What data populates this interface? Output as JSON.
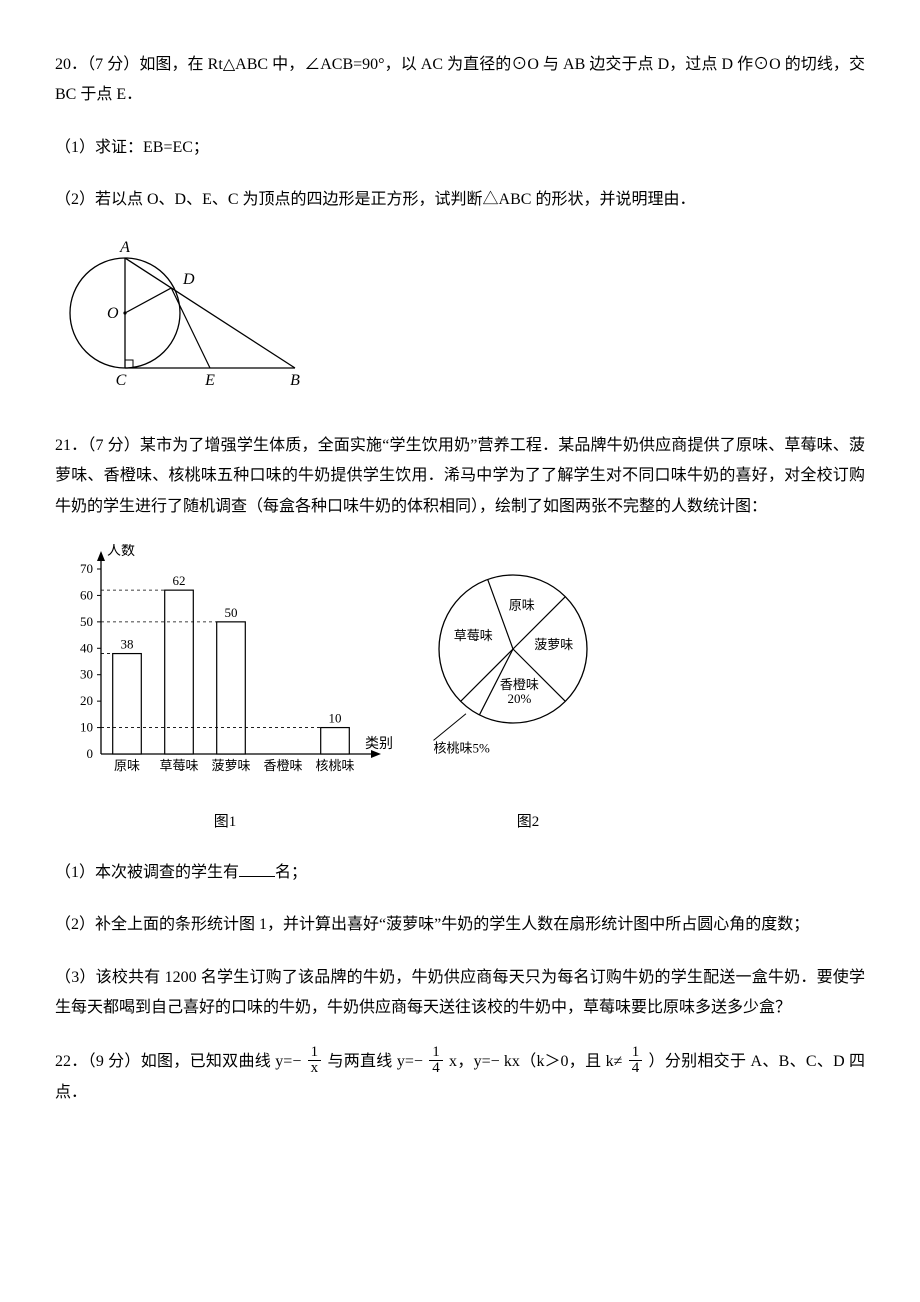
{
  "q20": {
    "num": "20．",
    "points": "（7 分）",
    "stem_a": "如图，在 Rt△ABC 中，∠ACB=90°，以 AC 为直径的⊙O 与 AB 边交于点 D，过点 D 作⊙O 的切线，交 BC 于点 E．",
    "part1": "（1）求证：EB=EC；",
    "part2": "（2）若以点 O、D、E、C 为顶点的四边形是正方形，试判断△ABC 的形状，并说明理由．",
    "labels": {
      "A": "A",
      "D": "D",
      "O": "O",
      "C": "C",
      "E": "E",
      "B": "B"
    }
  },
  "q21": {
    "num": "21．",
    "points": "（7 分）",
    "stem": "某市为了增强学生体质，全面实施“学生饮用奶”营养工程．某品牌牛奶供应商提供了原味、草莓味、菠萝味、香橙味、核桃味五种口味的牛奶提供学生饮用．浠马中学为了了解学生对不同口味牛奶的喜好，对全校订购牛奶的学生进行了随机调查（每盒各种口味牛奶的体积相同），绘制了如图两张不完整的人数统计图：",
    "bar": {
      "y_label": "人数",
      "x_label": "类别",
      "y_max": 70,
      "y_tick_step": 10,
      "categories": [
        "原味",
        "草莓味",
        "菠萝味",
        "香橙味",
        "核桃味"
      ],
      "values": [
        38,
        62,
        50,
        null,
        10
      ],
      "value_labels": [
        "38",
        "62",
        "50",
        "",
        "10"
      ],
      "bar_fill": "#ffffff",
      "bar_stroke": "#000000",
      "axis_color": "#000000",
      "tick_font_size": 13,
      "cat_font_size": 13,
      "caption": "图1"
    },
    "pie": {
      "slices": [
        {
          "label": "原味",
          "start": -110,
          "end": -45
        },
        {
          "label": "菠萝味",
          "start": -45,
          "end": 45
        },
        {
          "label": "香橙味\n20%",
          "start": 45,
          "end": 117
        },
        {
          "label": "核桃味5%",
          "start": 117,
          "end": 135,
          "external": true
        },
        {
          "label": "草莓味",
          "start": 135,
          "end": 250
        }
      ],
      "stroke": "#000000",
      "fill": "#ffffff",
      "caption": "图2"
    },
    "part1_a": "（1）本次被调查的学生有",
    "part1_b": "名；",
    "part2": "（2）补全上面的条形统计图 1，并计算出喜好“菠萝味”牛奶的学生人数在扇形统计图中所占圆心角的度数；",
    "part3": "（3）该校共有 1200 名学生订购了该品牌的牛奶，牛奶供应商每天只为每名订购牛奶的学生配送一盒牛奶．要使学生每天都喝到自己喜好的口味的牛奶，牛奶供应商每天送往该校的牛奶中，草莓味要比原味多送多少盒？"
  },
  "q22": {
    "num": "22．",
    "points": "（9 分）",
    "stem_a": "如图，已知双曲线 y=−",
    "stem_b": "与两直线 y=−",
    "stem_c": "x，y=− kx（k＞0，且 k≠",
    "stem_d": "）分别相交于 A、B、C、D 四点．",
    "frac1": {
      "num": "1",
      "den": "x"
    },
    "frac2": {
      "num": "1",
      "den": "4"
    },
    "frac3": {
      "num": "1",
      "den": "4"
    }
  }
}
